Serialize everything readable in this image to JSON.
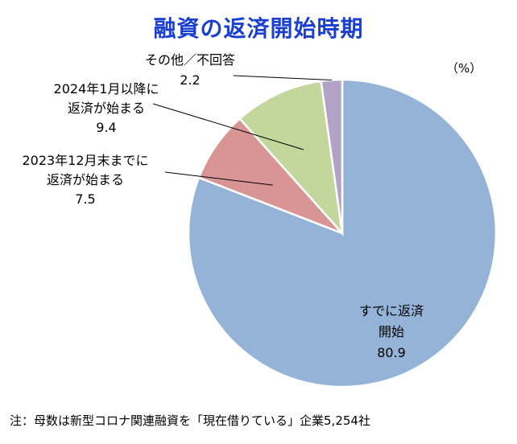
{
  "title": "融資の返済開始時期",
  "unit": "（%）",
  "note": "注：母数は新型コロナ関連融資を「現在借りている」企業5,254社",
  "chart_data": {
    "type": "pie",
    "title": "融資の返済開始時期",
    "unit": "（%）",
    "start": "12 o'clock",
    "direction": "clockwise",
    "slices": [
      {
        "label_lines": [
          "すでに返済",
          "開始"
        ],
        "value": 80.9,
        "value_label": "80.9",
        "color": "#95b3d7"
      },
      {
        "label_lines": [
          "2023年12月末までに",
          "返済が始まる"
        ],
        "value": 7.5,
        "value_label": "7.5",
        "color": "#d99594"
      },
      {
        "label_lines": [
          "2024年1月以降に",
          "返済が始まる"
        ],
        "value": 9.4,
        "value_label": "9.4",
        "color": "#c3d69b"
      },
      {
        "label_lines": [
          "その他／不回答"
        ],
        "value": 2.2,
        "value_label": "2.2",
        "color": "#b3a2c7"
      }
    ]
  }
}
